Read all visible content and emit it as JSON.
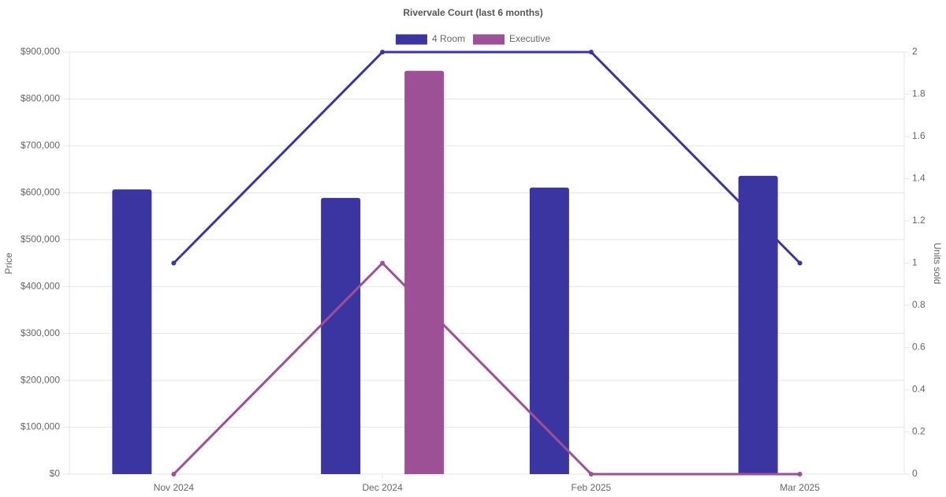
{
  "chart_data": {
    "type": "bar-line",
    "title": "Rivervale Court (last 6 months)",
    "y_label": "Price",
    "y2_label": "Units sold",
    "categories": [
      "Nov 2024",
      "Dec 2024",
      "Feb 2025",
      "Mar 2025"
    ],
    "series": [
      {
        "name": "4 Room",
        "type": "bar",
        "color": "#3a35a0",
        "values": [
          607000,
          589000,
          611000,
          636000
        ]
      },
      {
        "name": "Executive",
        "type": "bar",
        "color": "#9e5096",
        "values": [
          null,
          860000,
          null,
          null
        ]
      },
      {
        "type": "line",
        "axis": "y2",
        "color": "#3a35a0",
        "values": [
          1,
          2,
          2,
          1
        ]
      },
      {
        "type": "line",
        "axis": "y2",
        "color": "#9e5096",
        "values": [
          0,
          1,
          0,
          0
        ]
      }
    ],
    "ylim": [
      0,
      900000
    ],
    "yticks": [
      {
        "value": 0,
        "label": "$0"
      },
      {
        "value": 100000,
        "label": "$100,000"
      },
      {
        "value": 200000,
        "label": "$200,000"
      },
      {
        "value": 300000,
        "label": "$300,000"
      },
      {
        "value": 400000,
        "label": "$400,000"
      },
      {
        "value": 500000,
        "label": "$500,000"
      },
      {
        "value": 600000,
        "label": "$600,000"
      },
      {
        "value": 700000,
        "label": "$700,000"
      },
      {
        "value": 800000,
        "label": "$800,000"
      },
      {
        "value": 900000,
        "label": "$900,000"
      }
    ],
    "y2lim": [
      0,
      2
    ],
    "y2ticks": [
      0,
      0.2,
      0.4,
      0.6,
      0.8,
      1,
      1.2,
      1.4,
      1.6,
      1.8,
      2
    ],
    "grid": true,
    "legend": "top"
  }
}
